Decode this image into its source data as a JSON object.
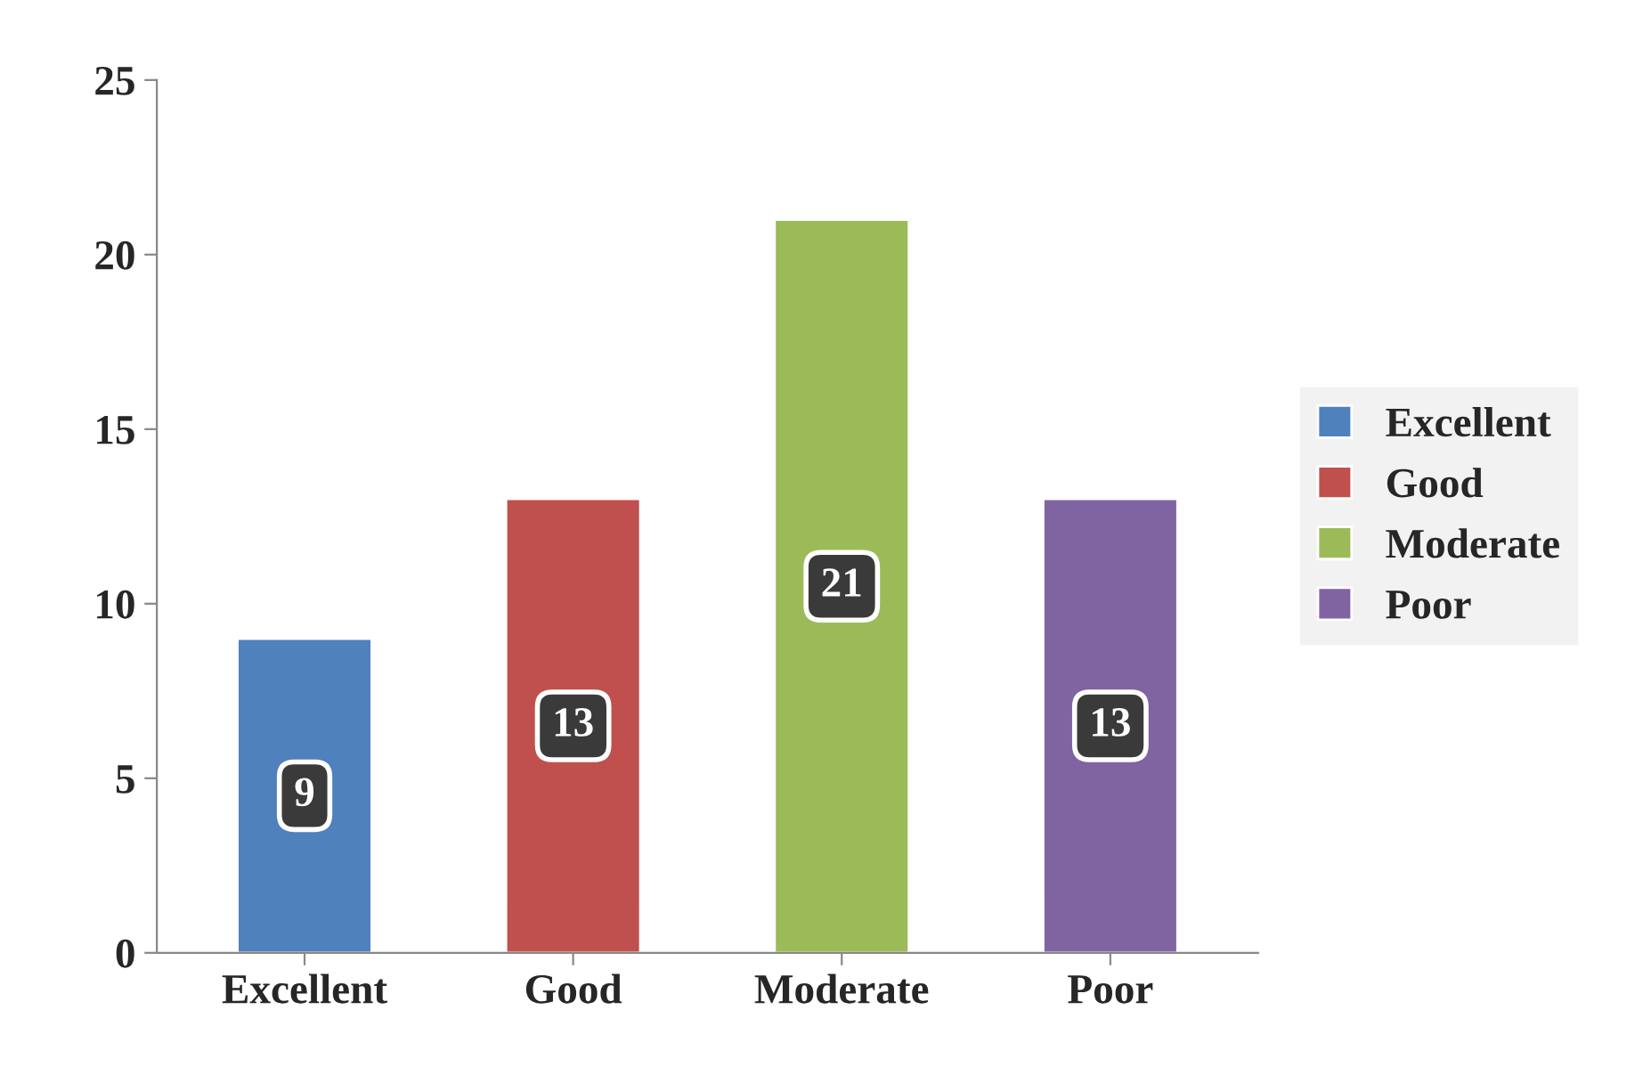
{
  "chart_data": {
    "type": "bar",
    "categories": [
      "Excellent",
      "Good",
      "Moderate",
      "Poor"
    ],
    "series": [
      {
        "name": "Excellent",
        "color": "#4f81bd",
        "values": [
          9,
          null,
          null,
          null
        ]
      },
      {
        "name": "Good",
        "color": "#c0504d",
        "values": [
          null,
          13,
          null,
          null
        ]
      },
      {
        "name": "Moderate",
        "color": "#9bbb59",
        "values": [
          null,
          null,
          21,
          null
        ]
      },
      {
        "name": "Poor",
        "color": "#8064a2",
        "values": [
          null,
          null,
          null,
          13
        ]
      }
    ],
    "ylim": [
      0,
      25
    ],
    "yticks": [
      0,
      5,
      10,
      15,
      20,
      25
    ],
    "data_labels": true,
    "grid": false,
    "legend": "right"
  }
}
